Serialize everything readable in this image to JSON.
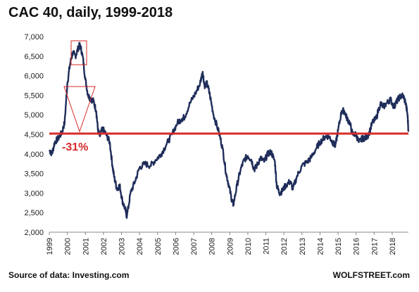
{
  "chart_data": {
    "type": "line",
    "title": "CAC 40, daily, 1999-2018",
    "xlabel": "",
    "ylabel": "",
    "xlim": [
      1999.0,
      2018.9
    ],
    "ylim": [
      2000,
      7000
    ],
    "yticks": [
      2000,
      2500,
      3000,
      3500,
      4000,
      4500,
      5000,
      5500,
      6000,
      6500,
      7000
    ],
    "ytick_labels": [
      "2,000",
      "2,500",
      "3,000",
      "3,500",
      "4,000",
      "4,500",
      "5,000",
      "5,500",
      "6,000",
      "6,500",
      "7,000"
    ],
    "xtick_labels": [
      "1999",
      "2000",
      "2001",
      "2002",
      "2003",
      "2004",
      "2005",
      "2006",
      "2007",
      "2008",
      "2009",
      "2010",
      "2011",
      "2012",
      "2013",
      "2014",
      "2015",
      "2016",
      "2017",
      "2018"
    ],
    "grid": false,
    "series": [
      {
        "color": "#1f2d5a",
        "x": [
          1999.0,
          1999.15,
          1999.3,
          1999.5,
          1999.7,
          1999.85,
          2000.0,
          2000.15,
          2000.3,
          2000.45,
          2000.6,
          2000.7,
          2000.85,
          2001.0,
          2001.15,
          2001.3,
          2001.45,
          2001.6,
          2001.7,
          2001.8,
          2001.95,
          2002.15,
          2002.35,
          2002.5,
          2002.6,
          2002.75,
          2002.9,
          2003.05,
          2003.2,
          2003.3,
          2003.5,
          2003.75,
          2004.0,
          2004.3,
          2004.6,
          2004.9,
          2005.2,
          2005.5,
          2005.8,
          2006.1,
          2006.35,
          2006.5,
          2006.8,
          2007.1,
          2007.35,
          2007.5,
          2007.6,
          2007.75,
          2007.9,
          2008.1,
          2008.4,
          2008.6,
          2008.8,
          2008.95,
          2009.1,
          2009.2,
          2009.4,
          2009.6,
          2009.8,
          2010.0,
          2010.2,
          2010.35,
          2010.5,
          2010.7,
          2010.9,
          2011.1,
          2011.3,
          2011.5,
          2011.6,
          2011.75,
          2011.9,
          2012.1,
          2012.35,
          2012.5,
          2012.7,
          2013.0,
          2013.3,
          2013.5,
          2013.8,
          2014.0,
          2014.3,
          2014.5,
          2014.7,
          2014.85,
          2015.0,
          2015.2,
          2015.35,
          2015.5,
          2015.65,
          2015.8,
          2016.0,
          2016.15,
          2016.35,
          2016.5,
          2016.7,
          2016.9,
          2017.1,
          2017.35,
          2017.5,
          2017.7,
          2017.9,
          2018.1,
          2018.2,
          2018.4,
          2018.6,
          2018.75,
          2018.85,
          2018.9
        ],
        "y": [
          4100,
          4000,
          4300,
          4400,
          4550,
          4800,
          5800,
          6300,
          6600,
          6500,
          6700,
          6800,
          6500,
          5900,
          5500,
          5400,
          5350,
          5100,
          4600,
          4450,
          4650,
          4500,
          4300,
          3700,
          3400,
          3100,
          3200,
          2800,
          2600,
          2400,
          3000,
          3300,
          3650,
          3750,
          3700,
          3850,
          4000,
          4250,
          4500,
          4800,
          4900,
          4950,
          5300,
          5550,
          5800,
          6100,
          5750,
          5800,
          5500,
          5000,
          4550,
          4150,
          3500,
          3200,
          2850,
          2700,
          3200,
          3600,
          3850,
          3950,
          3850,
          3600,
          3700,
          3900,
          3800,
          4000,
          4050,
          3800,
          3200,
          3000,
          3050,
          3200,
          3300,
          3100,
          3400,
          3700,
          3800,
          3900,
          4150,
          4300,
          4450,
          4450,
          4300,
          4200,
          4600,
          5100,
          5100,
          4900,
          4800,
          4500,
          4500,
          4300,
          4400,
          4400,
          4500,
          4800,
          4900,
          5300,
          5200,
          5300,
          5400,
          5200,
          5300,
          5450,
          5500,
          5300,
          5000,
          4600
        ]
      }
    ],
    "reference_line": {
      "value": 4520,
      "color": "#d62a2a"
    },
    "annotations": [
      {
        "text": "-31%",
        "color": "#d62a2a"
      }
    ]
  },
  "footer": {
    "source": "Source of data: Investing.com",
    "brand": "WOLFSTREET.com"
  }
}
